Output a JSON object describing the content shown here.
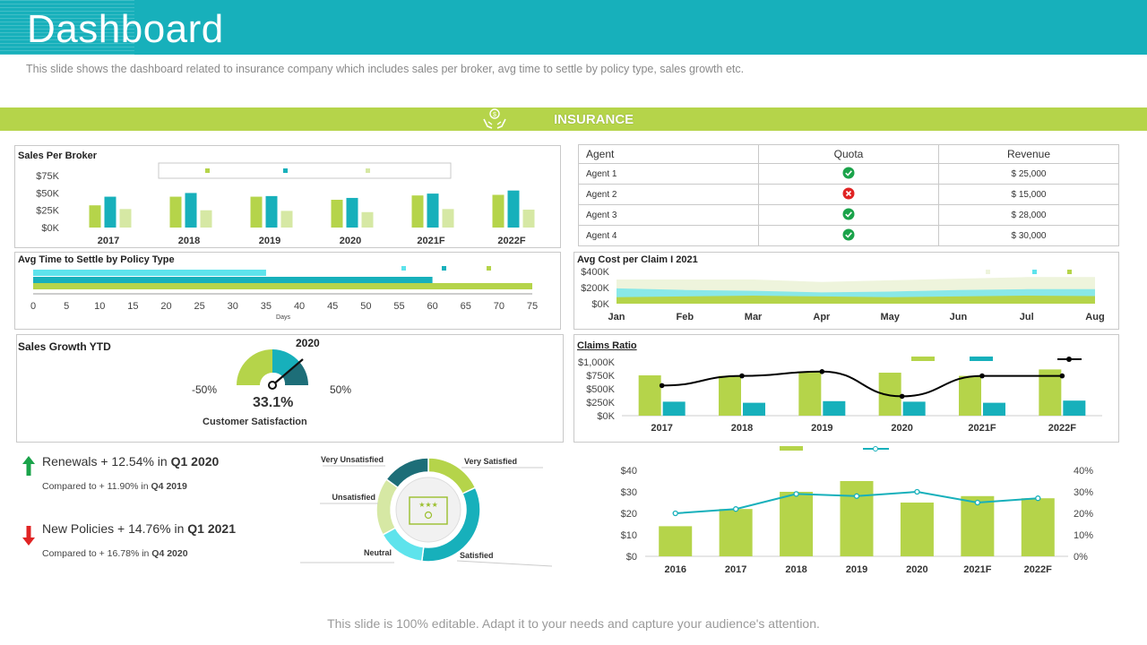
{
  "header": {
    "title": "Dashboard",
    "subtitle": "This slide shows the dashboard related to insurance company which includes sales per broker, avg time to settle by policy type, sales growth etc."
  },
  "section": {
    "label": "INSURANCE",
    "icon": "money-hands-icon"
  },
  "colors": {
    "teal": "#17b0bb",
    "green": "#b5d44a",
    "light_green": "#d6e8a4",
    "cyan": "#5ee3ec",
    "dark_teal": "#1d6e78"
  },
  "sales_per_broker": {
    "title": "Sales Per Broker",
    "chart_data": {
      "type": "bar",
      "categories": [
        "2017",
        "2018",
        "2019",
        "2020",
        "2021F",
        "2022F"
      ],
      "yticks": [
        "$0K",
        "$25K",
        "$50K",
        "$75K"
      ],
      "ylim": [
        0,
        80
      ],
      "series": [
        {
          "values": [
            36,
            50,
            50,
            45,
            52,
            53
          ]
        },
        {
          "values": [
            50,
            56,
            51,
            48,
            55,
            60
          ]
        },
        {
          "values": [
            30,
            28,
            27,
            25,
            30,
            29
          ]
        }
      ]
    }
  },
  "avg_time_settle": {
    "title": "Avg Time to Settle by Policy Type",
    "chart_data": {
      "type": "bar",
      "orientation": "horizontal",
      "xticks": [
        "0",
        "5",
        "10",
        "15",
        "20",
        "25",
        "30",
        "35",
        "40",
        "45",
        "50",
        "55",
        "60",
        "65",
        "70",
        "75"
      ],
      "xlim": [
        0,
        75
      ],
      "xlabel": "Days",
      "series": [
        {
          "values": [
            35
          ]
        },
        {
          "values": [
            60
          ]
        },
        {
          "values": [
            75
          ]
        }
      ]
    }
  },
  "agent_table": {
    "headers": [
      "Agent",
      "Quota",
      "Revenue"
    ],
    "rows": [
      {
        "agent": "Agent 1",
        "quota": "check-icon",
        "revenue": "$ 25,000"
      },
      {
        "agent": "Agent 2",
        "quota": "cross-icon",
        "revenue": "$ 15,000"
      },
      {
        "agent": "Agent 3",
        "quota": "check-icon",
        "revenue": "$ 28,000"
      },
      {
        "agent": "Agent 4",
        "quota": "check-icon",
        "revenue": "$ 30,000"
      }
    ]
  },
  "avg_cost_claim": {
    "title": "Avg Cost per Claim I 2021",
    "chart_data": {
      "type": "area",
      "categories": [
        "Jan",
        "Feb",
        "Mar",
        "Apr",
        "May",
        "Jun",
        "Jul",
        "Aug"
      ],
      "yticks": [
        "$0K",
        "$200K",
        "$400K"
      ],
      "ylim": [
        0,
        400
      ],
      "series": [
        {
          "values": [
            300,
            300,
            300,
            270,
            290,
            310,
            330,
            330
          ]
        },
        {
          "values": [
            190,
            170,
            160,
            140,
            150,
            170,
            180,
            180
          ]
        },
        {
          "values": [
            80,
            90,
            100,
            90,
            80,
            90,
            100,
            95
          ]
        }
      ]
    }
  },
  "sales_growth": {
    "title": "Sales Growth YTD",
    "year": "2020",
    "value": "33.1%",
    "min_label": "-50%",
    "max_label": "50%",
    "caption": "Customer Satisfaction"
  },
  "claims_ratio": {
    "title": "Claims Ratio",
    "chart_data": {
      "type": "bar",
      "categories": [
        "2017",
        "2018",
        "2019",
        "2020",
        "2021F",
        "2022F"
      ],
      "yticks": [
        "$0K",
        "$250K",
        "$500K",
        "$750K",
        "$1,000K"
      ],
      "ylim": [
        0,
        1000
      ],
      "series": [
        {
          "values": [
            750,
            740,
            820,
            800,
            740,
            860
          ]
        },
        {
          "values": [
            260,
            240,
            270,
            260,
            240,
            280
          ]
        },
        {
          "type": "line",
          "values": [
            560,
            740,
            820,
            360,
            740,
            740
          ]
        }
      ]
    }
  },
  "stats": [
    {
      "prefix": "Renewals + 12.54% in ",
      "period": "Q1 2020",
      "sub_prefix": "Compared to + 11.90% in ",
      "sub_period": "Q4 2019",
      "direction": "up"
    },
    {
      "prefix": "New Policies + 14.76% in ",
      "period": "Q1 2021",
      "sub_prefix": "Compared to + 16.78% in ",
      "sub_period": "Q4 2020",
      "direction": "down"
    }
  ],
  "satisfaction": {
    "chart_data": {
      "type": "pie",
      "labels": [
        "Very Satisfied",
        "Satisfied",
        "Neutral",
        "Unsatisfied",
        "Very Unsatisfied"
      ],
      "values": [
        18,
        34,
        15,
        18,
        15
      ]
    }
  },
  "combo_chart": {
    "chart_data": {
      "type": "bar",
      "categories": [
        "2016",
        "2017",
        "2018",
        "2019",
        "2020",
        "2021F",
        "2022F"
      ],
      "yticks_left": [
        "$0",
        "$10",
        "$20",
        "$30",
        "$40"
      ],
      "ylim_left": [
        0,
        40
      ],
      "yticks_right": [
        "0%",
        "10%",
        "20%",
        "30%",
        "40%"
      ],
      "ylim_right": [
        0,
        40
      ],
      "series": [
        {
          "type": "bar",
          "values": [
            14,
            22,
            30,
            35,
            25,
            28,
            27
          ]
        },
        {
          "type": "line",
          "values": [
            20,
            22,
            29,
            28,
            30,
            25,
            27
          ]
        }
      ]
    }
  },
  "footer": "This slide is 100% editable. Adapt it to your needs and capture your audience's attention."
}
